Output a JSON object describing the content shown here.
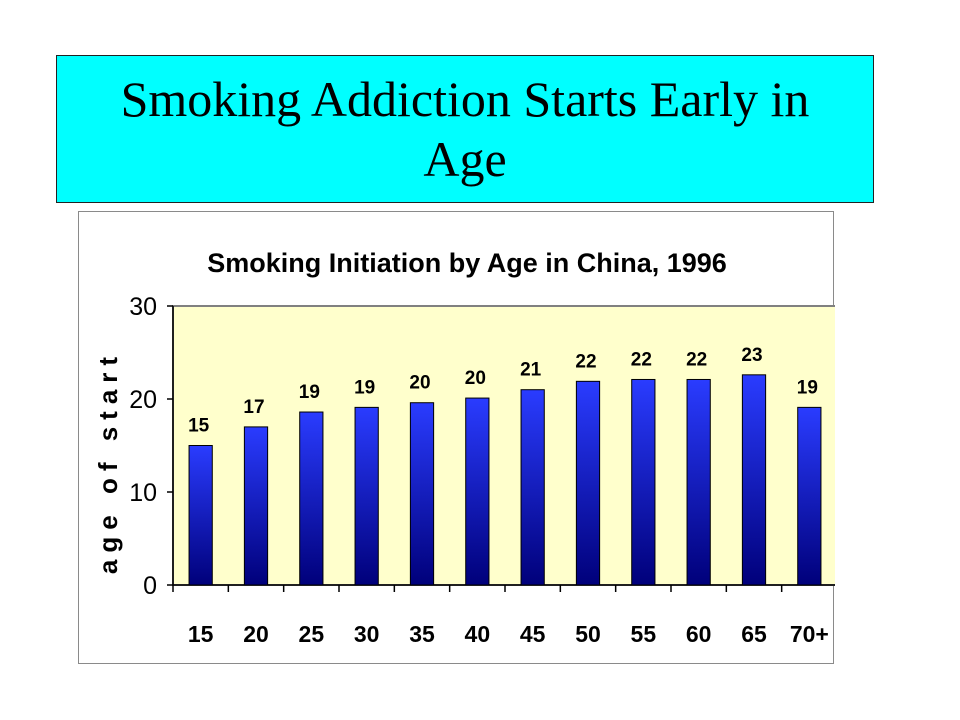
{
  "slide": {
    "title": "Smoking Addiction Starts Early in Age"
  },
  "colors": {
    "title_bg": "#00ffff",
    "plot_bg": "#ffffcc",
    "bar_top": "#2a3cff",
    "bar_bottom": "#00007a"
  },
  "chart_data": {
    "type": "bar",
    "title": "Smoking Initiation by Age in China, 1996",
    "xlabel": "",
    "ylabel": "age of start",
    "categories": [
      "15",
      "20",
      "25",
      "30",
      "35",
      "40",
      "45",
      "50",
      "55",
      "60",
      "65",
      "70+"
    ],
    "values": [
      15,
      17,
      18.6,
      19.1,
      19.6,
      20.1,
      21,
      21.9,
      22.1,
      22.1,
      22.6,
      19.1
    ],
    "data_labels": [
      "15",
      "17",
      "19",
      "19",
      "20",
      "20",
      "21",
      "22",
      "22",
      "22",
      "23",
      "19"
    ],
    "ylim": [
      0,
      30
    ],
    "yticks": [
      0,
      10,
      20,
      30
    ],
    "grid": false,
    "legend": "none"
  }
}
